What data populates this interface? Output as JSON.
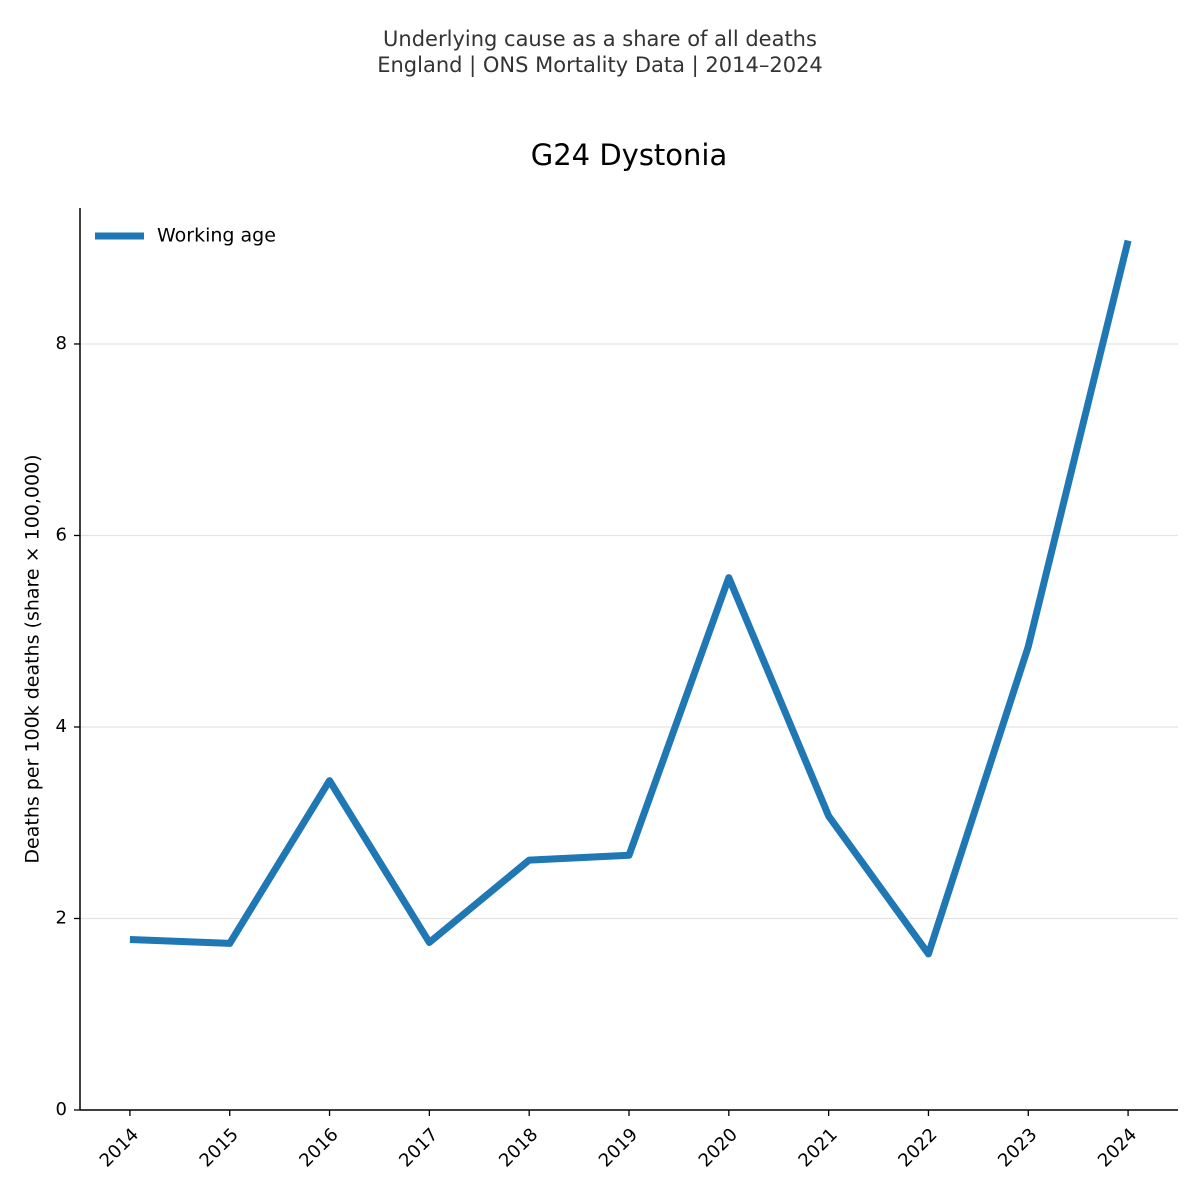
{
  "chart_data": {
    "type": "line",
    "suptitle": [
      "Underlying cause as a share of all deaths",
      "England | ONS Mortality Data | 2014–2024"
    ],
    "title": "G24 Dystonia",
    "ylabel": "Deaths per 100k deaths (share × 100,000)",
    "categories": [
      "2014",
      "2015",
      "2016",
      "2017",
      "2018",
      "2019",
      "2020",
      "2021",
      "2022",
      "2023",
      "2024"
    ],
    "series": [
      {
        "name": "Working age",
        "color": "#1f77b4",
        "values": [
          1.78,
          1.74,
          3.44,
          1.75,
          2.61,
          2.66,
          5.56,
          3.07,
          1.63,
          4.84,
          9.08
        ]
      }
    ],
    "ylim": [
      0,
      9.42
    ],
    "yticks": [
      0,
      2,
      4,
      6,
      8
    ],
    "grid": true,
    "legend": "upper left"
  }
}
